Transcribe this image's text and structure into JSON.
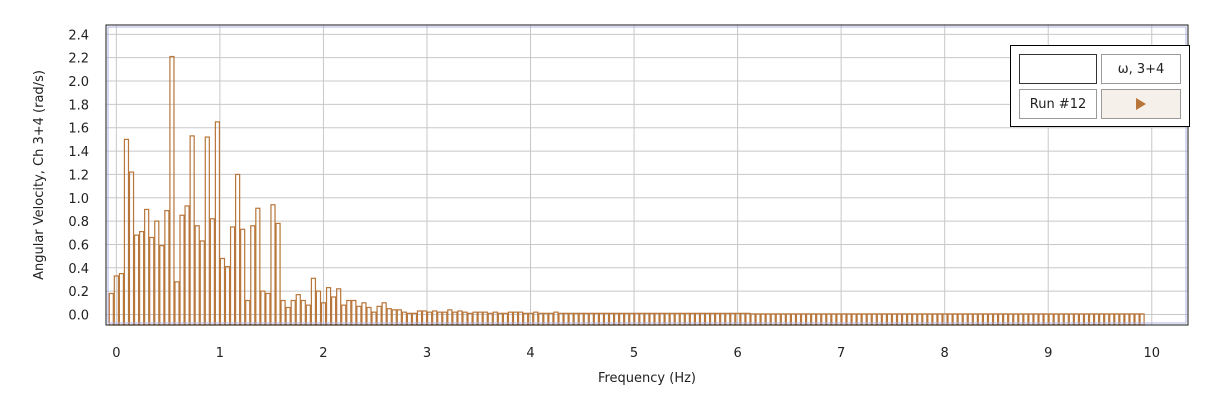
{
  "chart_data": {
    "type": "bar",
    "title": "",
    "xlabel": "Frequency (Hz)",
    "ylabel": "Angular Velocity, Ch 3+4 (rad/s)",
    "xlim": [
      -0.1,
      10.35
    ],
    "ylim": [
      -0.09,
      2.48
    ],
    "x_ticks": [
      "0",
      "1",
      "2",
      "3",
      "4",
      "5",
      "6",
      "7",
      "8",
      "9",
      "10"
    ],
    "y_ticks": [
      "0.0",
      "0.2",
      "0.4",
      "0.6",
      "0.8",
      "1.0",
      "1.2",
      "1.4",
      "1.6",
      "1.8",
      "2.0",
      "2.2",
      "2.4"
    ],
    "grid": true,
    "legend_position": "top-right",
    "bar_color": "#b8763a",
    "bar_width_hz": 0.0488,
    "series": [
      {
        "x_start": -0.0732,
        "x_step": 0.0488,
        "values": [
          0.18,
          0.33,
          0.35,
          1.5,
          1.22,
          0.68,
          0.71,
          0.9,
          0.66,
          0.8,
          0.59,
          0.89,
          2.21,
          0.28,
          0.85,
          0.93,
          1.53,
          0.76,
          0.63,
          1.52,
          0.82,
          1.65,
          0.48,
          0.41,
          0.75,
          1.2,
          0.73,
          0.12,
          0.76,
          0.91,
          0.2,
          0.18,
          0.94,
          0.78,
          0.12,
          0.06,
          0.12,
          0.17,
          0.12,
          0.08,
          0.31,
          0.2,
          0.1,
          0.23,
          0.15,
          0.22,
          0.08,
          0.12,
          0.12,
          0.07,
          0.1,
          0.06,
          0.02,
          0.07,
          0.1,
          0.05,
          0.04,
          0.04,
          0.02,
          0.01,
          0.01,
          0.03,
          0.03,
          0.02,
          0.03,
          0.02,
          0.02,
          0.04,
          0.02,
          0.03,
          0.02,
          0.01,
          0.02,
          0.02,
          0.02,
          0.01,
          0.02,
          0.01,
          0.01,
          0.02,
          0.02,
          0.02,
          0.01,
          0.01,
          0.02,
          0.01,
          0.01,
          0.01,
          0.02,
          0.01,
          0.01,
          0.01,
          0.01,
          0.01,
          0.01,
          0.01,
          0.01,
          0.01,
          0.01,
          0.01,
          0.01,
          0.01,
          0.01,
          0.01,
          0.01,
          0.01,
          0.01,
          0.01,
          0.01,
          0.01,
          0.01,
          0.01,
          0.01,
          0.01,
          0.01,
          0.01,
          0.01,
          0.01,
          0.01,
          0.01,
          0.01,
          0.01,
          0.01,
          0.01,
          0.01,
          0.01,
          0.01,
          0.005,
          0.005,
          0.005,
          0.005,
          0.005,
          0.005,
          0.005,
          0.005,
          0.005,
          0.005,
          0.005,
          0.005,
          0.005,
          0.005,
          0.005,
          0.005,
          0.005,
          0.005,
          0.005,
          0.005,
          0.005,
          0.005,
          0.005,
          0.005,
          0.005,
          0.005,
          0.005,
          0.005,
          0.005,
          0.005,
          0.005,
          0.005,
          0.005,
          0.005,
          0.005,
          0.005,
          0.005,
          0.005,
          0.005,
          0.005,
          0.005,
          0.005,
          0.005,
          0.005,
          0.005,
          0.005,
          0.005,
          0.005,
          0.005,
          0.005,
          0.005,
          0.005,
          0.005,
          0.005,
          0.005,
          0.005,
          0.005,
          0.005,
          0.005,
          0.005,
          0.005,
          0.005,
          0.005,
          0.005,
          0.005,
          0.005,
          0.005,
          0.005,
          0.005,
          0.005,
          0.005,
          0.005,
          0.005,
          0.005,
          0.005,
          0.005,
          0.005,
          0.005
        ]
      }
    ]
  },
  "legend": {
    "series_label": "ω, 3+4",
    "run_label": "Run #12"
  }
}
